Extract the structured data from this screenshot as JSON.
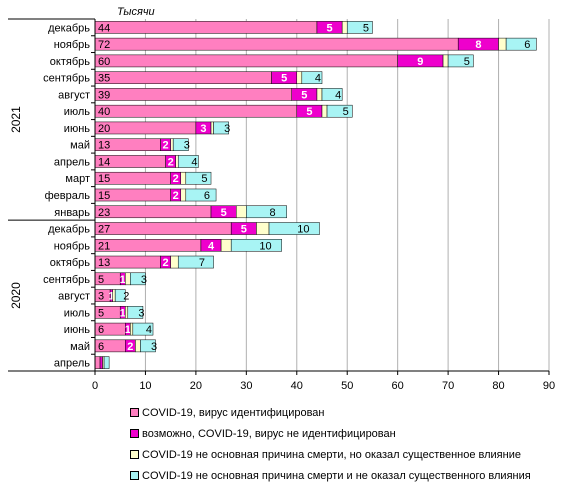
{
  "chart_data": {
    "type": "bar",
    "orientation": "horizontal",
    "stacked": true,
    "unit_label": "Тысячи",
    "xlim": [
      0,
      90
    ],
    "x_ticks": [
      "0",
      "10",
      "20",
      "30",
      "40",
      "50",
      "60",
      "70",
      "80",
      "90"
    ],
    "grid": "vertical",
    "groups": [
      {
        "label": "2021",
        "categories": [
          "декабрь",
          "ноябрь",
          "октябрь",
          "сентябрь",
          "август",
          "июль",
          "июнь",
          "май",
          "апрель",
          "март",
          "февраль",
          "январь"
        ]
      },
      {
        "label": "2020",
        "categories": [
          "декабрь",
          "ноябрь",
          "октябрь",
          "сентябрь",
          "август",
          "июль",
          "июнь",
          "май",
          "апрель"
        ]
      }
    ],
    "series": [
      {
        "name": "COVID-19,  вирус идентифицирован",
        "color": "#ff7fc0",
        "values": [
          44,
          72,
          60,
          35,
          39,
          40,
          20,
          13,
          14,
          15,
          15,
          23,
          27,
          21,
          13,
          5,
          3,
          5,
          6,
          6,
          1
        ]
      },
      {
        "name": "возможно, COVID-19,  вирус не идентифицирован",
        "color": "#ee00cc",
        "values": [
          5,
          8,
          9,
          5,
          5,
          5,
          3,
          2,
          2,
          2,
          2,
          5,
          5,
          4,
          2,
          1,
          0.5,
          1,
          1,
          2,
          0.5
        ]
      },
      {
        "name": "COVID-19  не  основная причина смерти, но оказал  существенное влияние",
        "color": "#ffffcc",
        "values": [
          1,
          1.5,
          1,
          1,
          1,
          1,
          0.5,
          0.5,
          0.5,
          1,
          1,
          2,
          2.5,
          2,
          1.5,
          1,
          0.5,
          0.5,
          0.5,
          1,
          0.3
        ]
      },
      {
        "name": "COVID-19  не  основная причина смерти и не оказал  существенного влияния",
        "color": "#a8f4f4",
        "values": [
          5,
          6,
          5,
          4,
          4,
          5,
          3,
          3,
          4,
          5,
          6,
          8,
          10,
          10,
          7,
          3,
          2,
          3,
          4,
          3,
          1
        ]
      }
    ],
    "data_labels": [
      [
        "44",
        "72",
        "60",
        "35",
        "39",
        "40",
        "20",
        "13",
        "14",
        "15",
        "15",
        "23",
        "27",
        "21",
        "13",
        "5",
        "3",
        "5",
        "6",
        "6",
        ""
      ],
      [
        "5",
        "8",
        "9",
        "5",
        "5",
        "5",
        "3",
        "2",
        "2",
        "2",
        "2",
        "5",
        "5",
        "4",
        "2",
        "1",
        "1",
        "1",
        "1",
        "2",
        ""
      ],
      [
        "",
        "",
        "",
        "",
        "",
        "",
        "",
        "",
        "",
        "",
        "",
        "",
        "",
        "",
        "",
        "",
        "",
        "",
        "",
        "",
        ""
      ],
      [
        "5",
        "6",
        "5",
        "4",
        "4",
        "5",
        "3",
        "3",
        "4",
        "5",
        "6",
        "8",
        "10",
        "10",
        "7",
        "3",
        "2",
        "3",
        "4",
        "3",
        ""
      ]
    ]
  }
}
